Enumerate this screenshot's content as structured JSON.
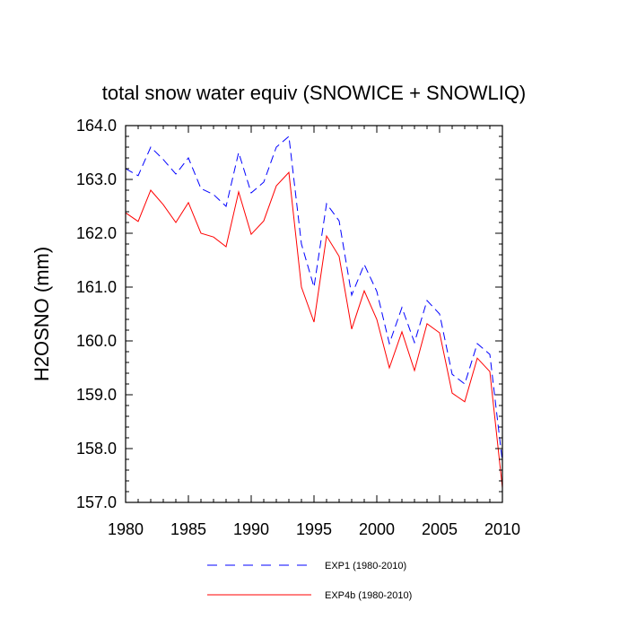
{
  "chart_data": {
    "type": "line",
    "title": "total snow water equiv (SNOWICE + SNOWLIQ)",
    "xlabel": "",
    "ylabel": "H2OSNO  (mm)",
    "xlim": [
      1980,
      2010
    ],
    "ylim": [
      157.0,
      164.0
    ],
    "x_ticks": [
      1980,
      1985,
      1990,
      1995,
      2000,
      2005,
      2010
    ],
    "x_tick_labels": [
      "1980",
      "1985",
      "1990",
      "1995",
      "2000",
      "2005",
      "2010"
    ],
    "y_ticks": [
      157.0,
      158.0,
      159.0,
      160.0,
      161.0,
      162.0,
      163.0,
      164.0
    ],
    "y_tick_labels": [
      "157.0",
      "158.0",
      "159.0",
      "160.0",
      "161.0",
      "162.0",
      "163.0",
      "164.0"
    ],
    "x": [
      1980,
      1981,
      1982,
      1983,
      1984,
      1985,
      1986,
      1987,
      1988,
      1989,
      1990,
      1991,
      1992,
      1993,
      1994,
      1995,
      1996,
      1997,
      1998,
      1999,
      2000,
      2001,
      2002,
      2003,
      2004,
      2005,
      2006,
      2007,
      2008,
      2009,
      2010
    ],
    "series": [
      {
        "name": "EXP1 (1980-2010)",
        "color": "#0000ff",
        "dash": "dashed",
        "values": [
          163.2,
          163.07,
          163.6,
          163.37,
          163.1,
          163.4,
          162.83,
          162.72,
          162.5,
          163.5,
          162.75,
          162.95,
          163.6,
          163.8,
          161.8,
          161.0,
          162.55,
          162.23,
          160.85,
          161.42,
          160.92,
          159.95,
          160.62,
          159.97,
          160.75,
          160.5,
          159.38,
          159.2,
          159.95,
          159.75,
          157.75
        ]
      },
      {
        "name": "EXP4b (1980-2010)",
        "color": "#ff0000",
        "dash": "solid",
        "values": [
          162.38,
          162.22,
          162.8,
          162.53,
          162.2,
          162.57,
          162.0,
          161.93,
          161.75,
          162.77,
          161.98,
          162.23,
          162.88,
          163.13,
          161.0,
          160.35,
          161.95,
          161.57,
          160.22,
          160.93,
          160.4,
          159.5,
          160.17,
          159.45,
          160.32,
          160.15,
          159.03,
          158.87,
          159.68,
          159.43,
          157.27
        ]
      }
    ],
    "legend_position": "bottom-center"
  }
}
